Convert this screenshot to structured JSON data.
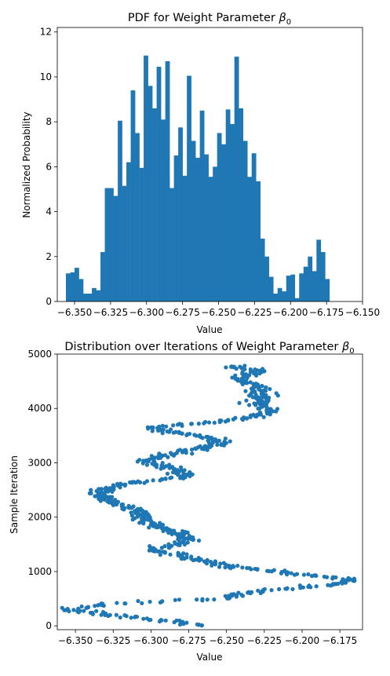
{
  "chart_data": [
    {
      "type": "bar",
      "title": "PDF for Weight Parameter",
      "title_symbol": "β",
      "title_subscript": "0",
      "xlabel": "Value",
      "ylabel": "Normalized Probability",
      "xlim": [
        -6.362,
        -6.15
      ],
      "ylim": [
        0,
        12.2
      ],
      "xticks": [
        -6.35,
        -6.325,
        -6.3,
        -6.275,
        -6.25,
        -6.225,
        -6.2,
        -6.175,
        -6.15
      ],
      "xtick_labels": [
        "−6.350",
        "−6.325",
        "−6.300",
        "−6.275",
        "−6.250",
        "−6.225",
        "−6.200",
        "−6.175",
        "−6.150"
      ],
      "yticks": [
        0,
        2,
        4,
        6,
        8,
        10,
        12
      ],
      "ytick_labels": [
        "0",
        "2",
        "4",
        "6",
        "8",
        "10",
        "12"
      ],
      "color": "#1f77b4",
      "bin_start": -6.356,
      "bin_width": 0.003,
      "values": [
        1.25,
        1.3,
        1.5,
        1.0,
        0.35,
        0.35,
        0.6,
        0.5,
        2.2,
        5.05,
        5.05,
        4.7,
        8.05,
        5.15,
        6.2,
        9.4,
        7.5,
        5.95,
        10.95,
        9.6,
        8.6,
        10.45,
        8.1,
        10.7,
        5.05,
        6.5,
        7.75,
        5.6,
        10.05,
        7.15,
        6.4,
        8.5,
        6.55,
        5.55,
        6.0,
        7.5,
        7.0,
        8.55,
        7.9,
        10.9,
        8.6,
        7.15,
        5.55,
        6.6,
        5.35,
        2.8,
        2.0,
        1.1,
        0.35,
        0.6,
        0.45,
        1.15,
        1.2,
        0.15,
        1.25,
        1.55,
        2.0,
        1.35,
        2.75,
        2.2,
        1.0
      ]
    },
    {
      "type": "scatter",
      "title": "Distribution over Iterations of Weight Parameter",
      "title_symbol": "β",
      "title_subscript": "0",
      "xlabel": "Value",
      "ylabel": "Sample Iteration",
      "xlim": [
        -6.362,
        -6.16
      ],
      "ylim": [
        -70,
        5000
      ],
      "xticks": [
        -6.35,
        -6.325,
        -6.3,
        -6.275,
        -6.25,
        -6.225,
        -6.2,
        -6.175
      ],
      "xtick_labels": [
        "−6.350",
        "−6.325",
        "−6.300",
        "−6.275",
        "−6.250",
        "−6.225",
        "−6.200",
        "−6.175"
      ],
      "yticks": [
        0,
        1000,
        2000,
        3000,
        4000,
        5000
      ],
      "ytick_labels": [
        "0",
        "1000",
        "2000",
        "3000",
        "4000",
        "5000"
      ],
      "color": "#1f77b4",
      "trajectory": [
        [
          0,
          -6.265
        ],
        [
          100,
          -6.29
        ],
        [
          180,
          -6.32
        ],
        [
          300,
          -6.355
        ],
        [
          400,
          -6.33
        ],
        [
          500,
          -6.255
        ],
        [
          650,
          -6.225
        ],
        [
          750,
          -6.185
        ],
        [
          850,
          -6.165
        ],
        [
          950,
          -6.2
        ],
        [
          1100,
          -6.25
        ],
        [
          1250,
          -6.275
        ],
        [
          1400,
          -6.3
        ],
        [
          1550,
          -6.275
        ],
        [
          1700,
          -6.28
        ],
        [
          1850,
          -6.3
        ],
        [
          2000,
          -6.305
        ],
        [
          2150,
          -6.31
        ],
        [
          2300,
          -6.33
        ],
        [
          2450,
          -6.335
        ],
        [
          2600,
          -6.32
        ],
        [
          2750,
          -6.275
        ],
        [
          2900,
          -6.285
        ],
        [
          3050,
          -6.305
        ],
        [
          3200,
          -6.28
        ],
        [
          3350,
          -6.255
        ],
        [
          3450,
          -6.26
        ],
        [
          3550,
          -6.285
        ],
        [
          3650,
          -6.3
        ],
        [
          3800,
          -6.24
        ],
        [
          3950,
          -6.22
        ],
        [
          4100,
          -6.23
        ],
        [
          4250,
          -6.225
        ],
        [
          4400,
          -6.23
        ],
        [
          4550,
          -6.245
        ],
        [
          4700,
          -6.23
        ],
        [
          4790,
          -6.25
        ]
      ]
    }
  ]
}
